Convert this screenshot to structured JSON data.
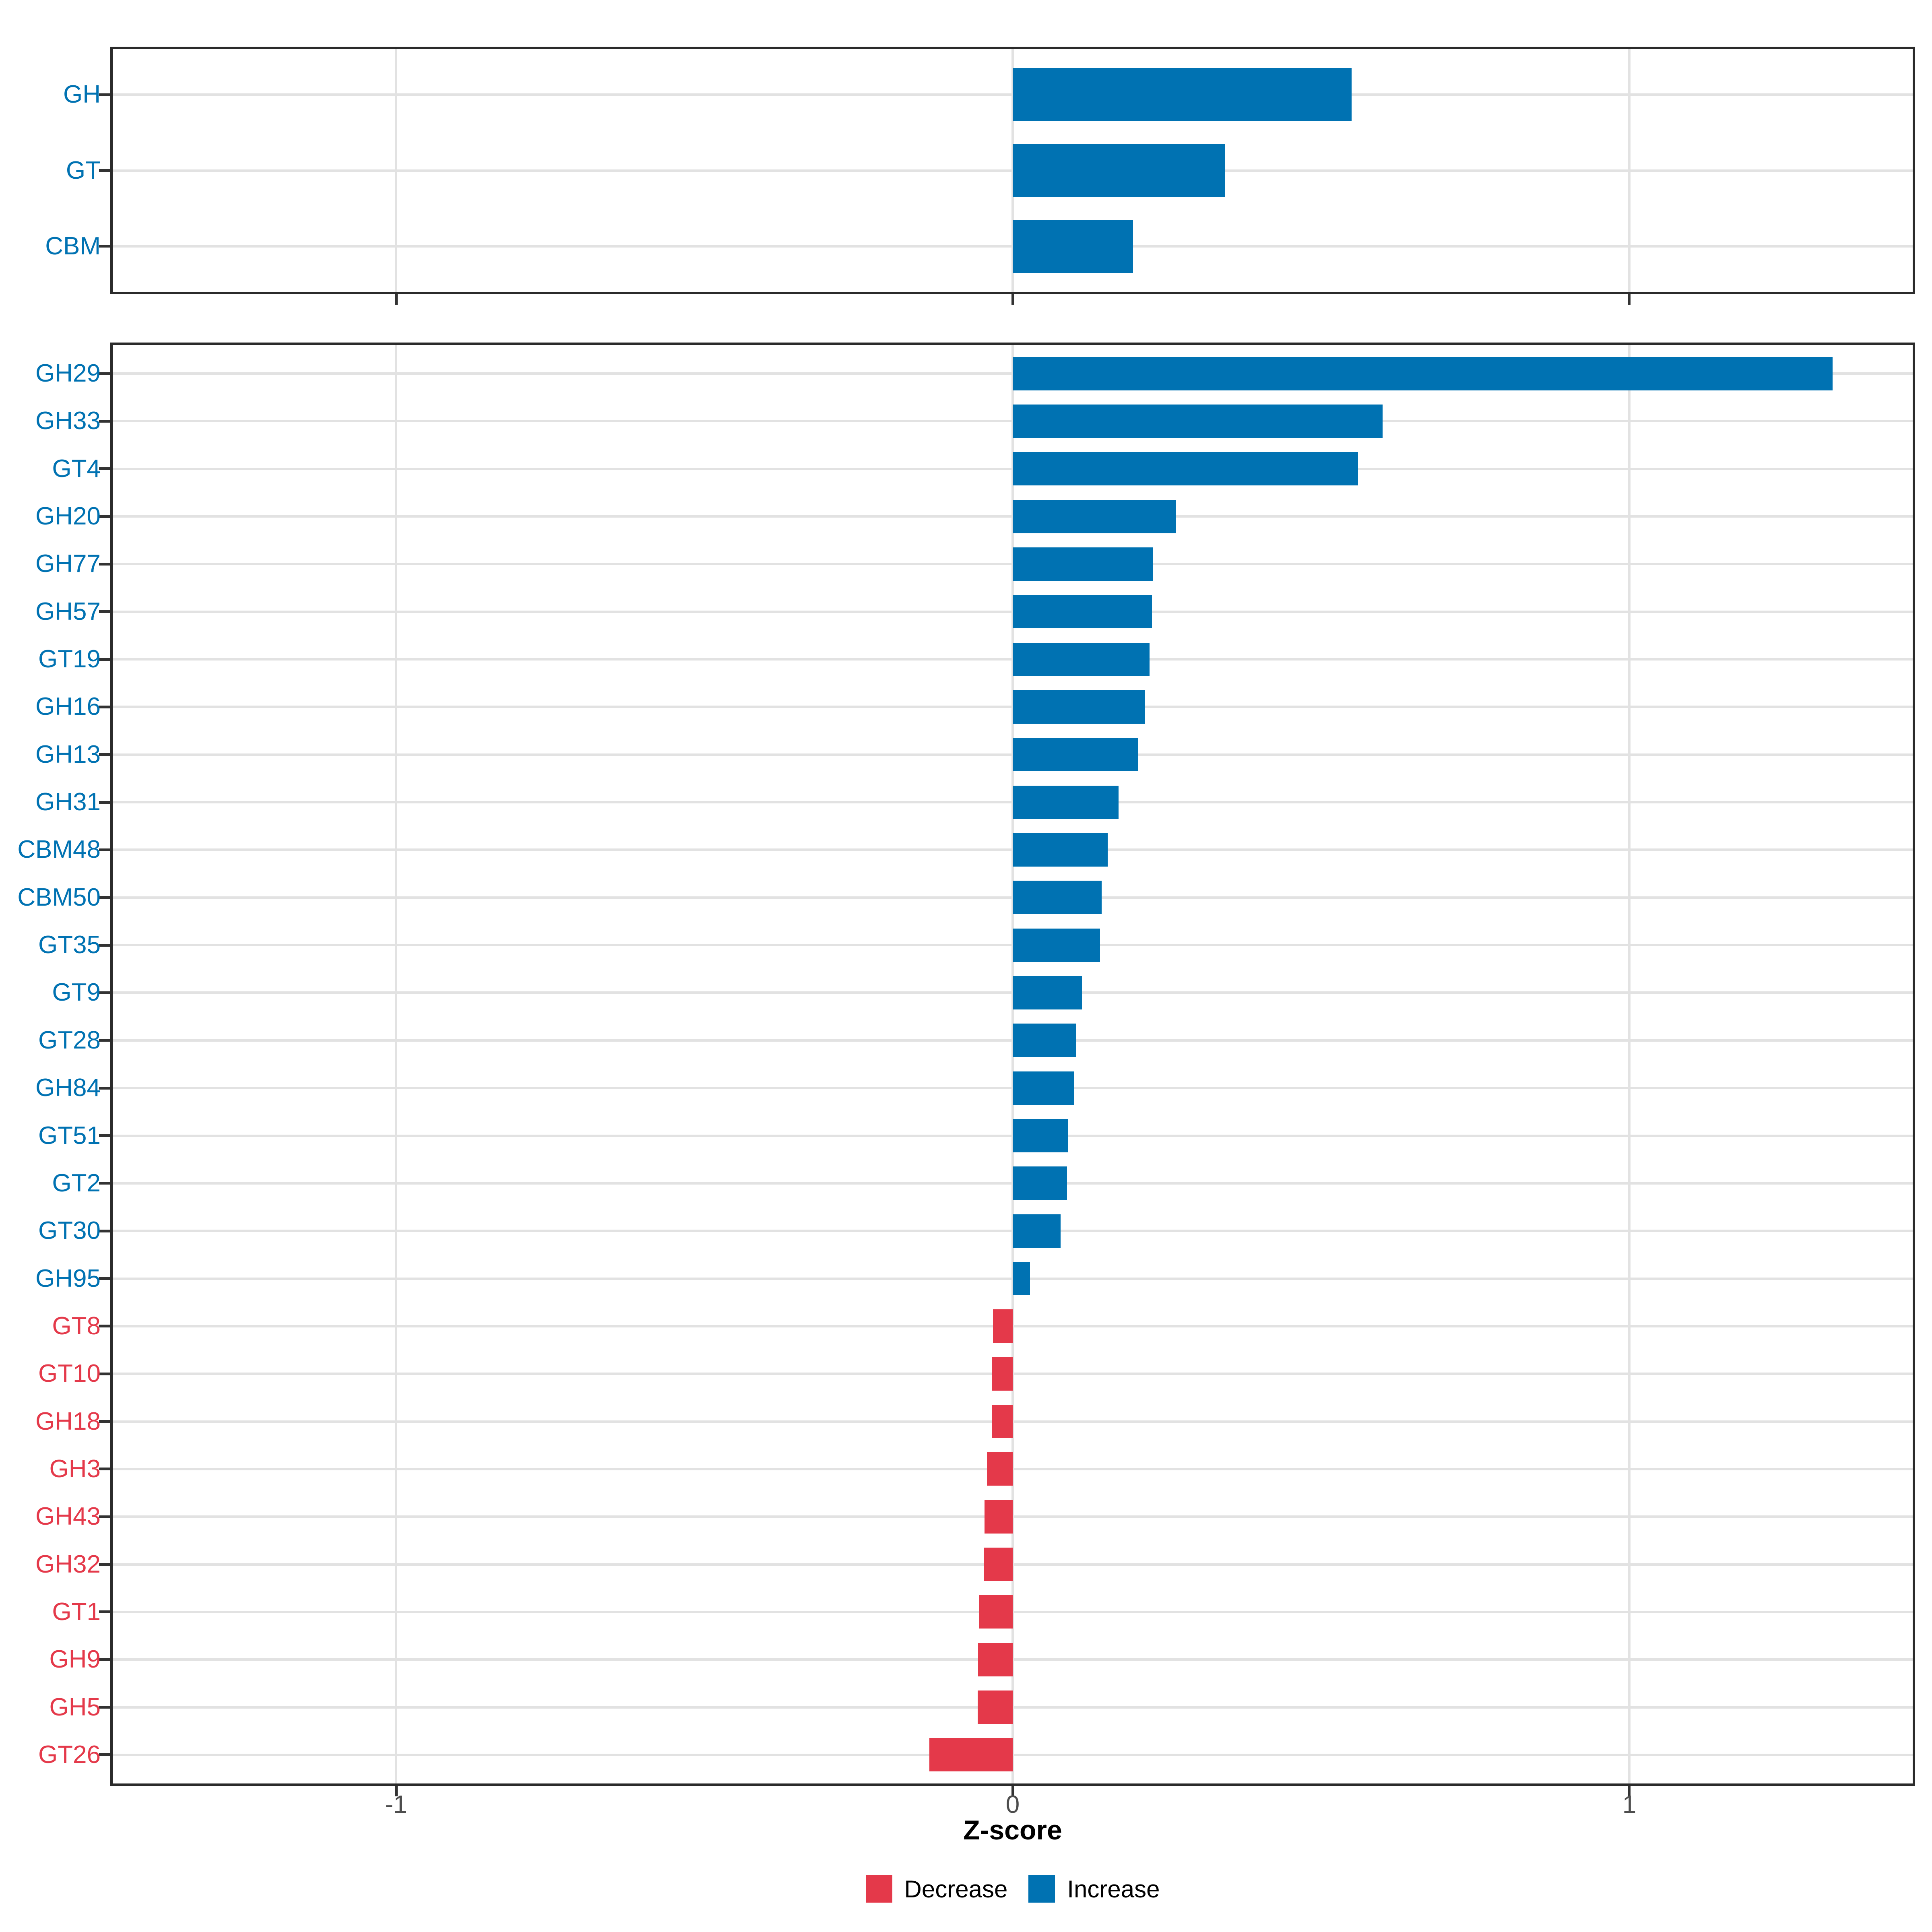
{
  "chart_data": {
    "type": "bar",
    "orientation": "horizontal",
    "title": "",
    "xlabel": "Z-score",
    "ylabel": "",
    "xlim": [
      -1.46,
      1.46
    ],
    "x_ticks": [
      -1,
      0,
      1
    ],
    "grid": "major-only",
    "legend_position": "bottom",
    "panels": [
      {
        "name": "cazyme-family-summary",
        "rows": [
          {
            "label": "GH",
            "value": 0.55,
            "direction": "Increase"
          },
          {
            "label": "GT",
            "value": 0.345,
            "direction": "Increase"
          },
          {
            "label": "CBM",
            "value": 0.195,
            "direction": "Increase"
          }
        ]
      },
      {
        "name": "cazyme-subfamily-detail",
        "rows": [
          {
            "label": "GH29",
            "value": 1.33,
            "direction": "Increase"
          },
          {
            "label": "GH33",
            "value": 0.6,
            "direction": "Increase"
          },
          {
            "label": "GT4",
            "value": 0.56,
            "direction": "Increase"
          },
          {
            "label": "GH20",
            "value": 0.265,
            "direction": "Increase"
          },
          {
            "label": "GH77",
            "value": 0.228,
            "direction": "Increase"
          },
          {
            "label": "GH57",
            "value": 0.226,
            "direction": "Increase"
          },
          {
            "label": "GT19",
            "value": 0.222,
            "direction": "Increase"
          },
          {
            "label": "GH16",
            "value": 0.214,
            "direction": "Increase"
          },
          {
            "label": "GH13",
            "value": 0.204,
            "direction": "Increase"
          },
          {
            "label": "GH31",
            "value": 0.172,
            "direction": "Increase"
          },
          {
            "label": "CBM48",
            "value": 0.154,
            "direction": "Increase"
          },
          {
            "label": "CBM50",
            "value": 0.144,
            "direction": "Increase"
          },
          {
            "label": "GT35",
            "value": 0.142,
            "direction": "Increase"
          },
          {
            "label": "GT9",
            "value": 0.112,
            "direction": "Increase"
          },
          {
            "label": "GT28",
            "value": 0.103,
            "direction": "Increase"
          },
          {
            "label": "GH84",
            "value": 0.099,
            "direction": "Increase"
          },
          {
            "label": "GT51",
            "value": 0.09,
            "direction": "Increase"
          },
          {
            "label": "GT2",
            "value": 0.088,
            "direction": "Increase"
          },
          {
            "label": "GT30",
            "value": 0.078,
            "direction": "Increase"
          },
          {
            "label": "GH95",
            "value": 0.028,
            "direction": "Increase"
          },
          {
            "label": "GT8",
            "value": -0.032,
            "direction": "Decrease"
          },
          {
            "label": "GT10",
            "value": -0.033,
            "direction": "Decrease"
          },
          {
            "label": "GH18",
            "value": -0.034,
            "direction": "Decrease"
          },
          {
            "label": "GH3",
            "value": -0.042,
            "direction": "Decrease"
          },
          {
            "label": "GH43",
            "value": -0.046,
            "direction": "Decrease"
          },
          {
            "label": "GH32",
            "value": -0.047,
            "direction": "Decrease"
          },
          {
            "label": "GT1",
            "value": -0.055,
            "direction": "Decrease"
          },
          {
            "label": "GH9",
            "value": -0.056,
            "direction": "Decrease"
          },
          {
            "label": "GH5",
            "value": -0.057,
            "direction": "Decrease"
          },
          {
            "label": "GT26",
            "value": -0.135,
            "direction": "Decrease"
          }
        ]
      }
    ],
    "legend": {
      "entries": [
        {
          "label": "Decrease",
          "color": "#e4394a"
        },
        {
          "label": "Increase",
          "color": "#0072b2"
        }
      ]
    }
  },
  "colors": {
    "increase": "#0072b2",
    "decrease": "#e4394a",
    "grid": "#e2e2e2",
    "panel_border": "#2b2b2b",
    "tick": "#333333",
    "axis_text": "#4d4d4d",
    "background": "#ffffff"
  }
}
